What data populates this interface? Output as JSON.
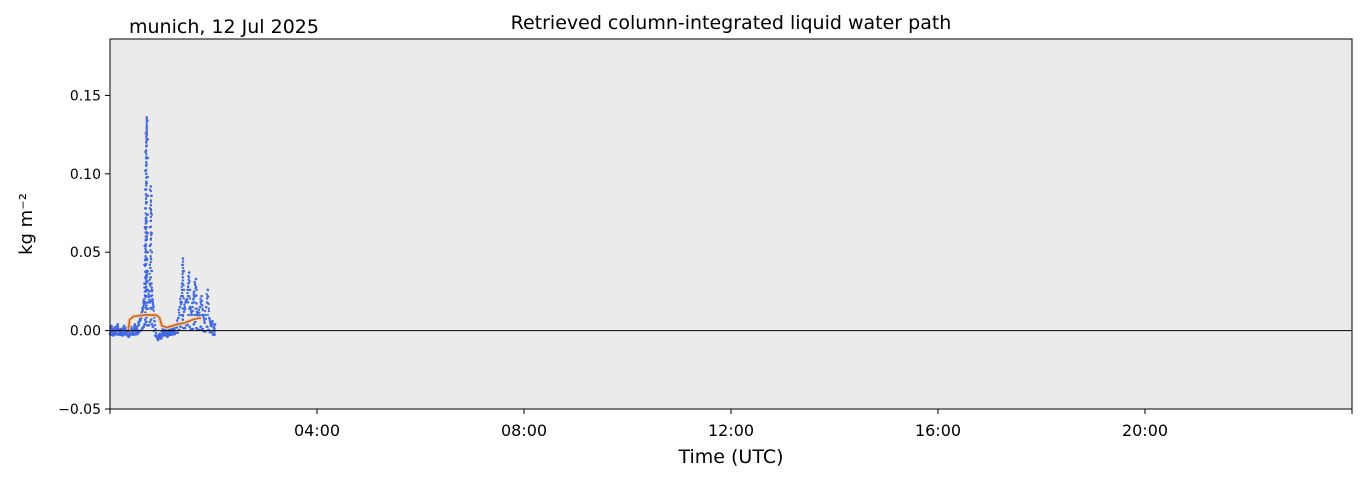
{
  "chart_data": {
    "type": "scatter",
    "title": "Retrieved column-integrated liquid water path",
    "subtitle": "munich, 12 Jul 2025",
    "xlabel": "Time (UTC)",
    "ylabel": "kg m⁻²",
    "xlim_hours": [
      0,
      24
    ],
    "ylim": [
      -0.05,
      0.186
    ],
    "xticks": [
      {
        "h": 0,
        "label": ""
      },
      {
        "h": 4,
        "label": "04:00"
      },
      {
        "h": 8,
        "label": "08:00"
      },
      {
        "h": 12,
        "label": "12:00"
      },
      {
        "h": 16,
        "label": "16:00"
      },
      {
        "h": 20,
        "label": "20:00"
      },
      {
        "h": 24,
        "label": ""
      }
    ],
    "yticks": [
      {
        "v": -0.05,
        "label": "−0.05"
      },
      {
        "v": 0,
        "label": "0.00"
      },
      {
        "v": 0.05,
        "label": "0.05"
      },
      {
        "v": 0.1,
        "label": "0.10"
      },
      {
        "v": 0.15,
        "label": "0.15"
      }
    ],
    "grid": false,
    "background": "#ebebeb",
    "zero_line": true,
    "colors": {
      "points": "#4169e1",
      "smoothed": "#c8642a",
      "smoothed_edge": "#f5cfa8"
    },
    "series": [
      {
        "kind": "scatter",
        "points": [
          [
            0.0,
            -0.002
          ],
          [
            0.03,
            0.003
          ],
          [
            0.06,
            -0.003
          ],
          [
            0.09,
            0.002
          ],
          [
            0.12,
            -0.001
          ],
          [
            0.15,
            0.004
          ],
          [
            0.18,
            -0.002
          ],
          [
            0.21,
            0.001
          ],
          [
            0.24,
            -0.003
          ],
          [
            0.27,
            0.003
          ],
          [
            0.3,
            -0.001
          ],
          [
            0.33,
            0.002
          ],
          [
            0.36,
            -0.004
          ],
          [
            0.39,
            0.003
          ],
          [
            0.42,
            0.001
          ],
          [
            0.45,
            -0.002
          ],
          [
            0.48,
            0.004
          ],
          [
            0.51,
            -0.001
          ],
          [
            0.54,
            0.003
          ],
          [
            0.57,
            0.006
          ],
          [
            0.6,
            0.008
          ],
          [
            0.62,
            0.012
          ],
          [
            0.64,
            0.015
          ],
          [
            0.66,
            0.02
          ],
          [
            0.68,
            0.03
          ],
          [
            0.68,
            0.045
          ],
          [
            0.69,
            0.055
          ],
          [
            0.69,
            0.065
          ],
          [
            0.69,
            0.078
          ],
          [
            0.7,
            0.09
          ],
          [
            0.7,
            0.1
          ],
          [
            0.7,
            0.11
          ],
          [
            0.7,
            0.12
          ],
          [
            0.71,
            0.125
          ],
          [
            0.71,
            0.13
          ],
          [
            0.71,
            0.136
          ],
          [
            0.7,
            0.035
          ],
          [
            0.69,
            0.025
          ],
          [
            0.71,
            0.06
          ],
          [
            0.7,
            0.072
          ],
          [
            0.74,
            0.018
          ],
          [
            0.76,
            0.025
          ],
          [
            0.78,
            0.04
          ],
          [
            0.79,
            0.055
          ],
          [
            0.79,
            0.07
          ],
          [
            0.79,
            0.08
          ],
          [
            0.79,
            0.092
          ],
          [
            0.8,
            0.03
          ],
          [
            0.82,
            0.02
          ],
          [
            0.84,
            0.015
          ],
          [
            0.86,
            0.006
          ],
          [
            0.9,
            -0.004
          ],
          [
            0.93,
            -0.006
          ],
          [
            0.96,
            -0.002
          ],
          [
            0.99,
            -0.005
          ],
          [
            1.02,
            0.001
          ],
          [
            1.05,
            -0.003
          ],
          [
            1.08,
            0.002
          ],
          [
            1.11,
            -0.004
          ],
          [
            1.14,
            0.001
          ],
          [
            1.17,
            -0.002
          ],
          [
            1.2,
            0.003
          ],
          [
            1.23,
            -0.001
          ],
          [
            1.26,
            0.004
          ],
          [
            1.29,
            0.002
          ],
          [
            1.32,
            0.008
          ],
          [
            1.35,
            0.015
          ],
          [
            1.38,
            0.022
          ],
          [
            1.4,
            0.03
          ],
          [
            1.41,
            0.038
          ],
          [
            1.41,
            0.046
          ],
          [
            1.43,
            0.012
          ],
          [
            1.46,
            0.018
          ],
          [
            1.49,
            0.02
          ],
          [
            1.51,
            0.028
          ],
          [
            1.53,
            0.037
          ],
          [
            1.55,
            0.015
          ],
          [
            1.58,
            0.01
          ],
          [
            1.61,
            0.02
          ],
          [
            1.63,
            0.025
          ],
          [
            1.66,
            0.033
          ],
          [
            1.68,
            0.012
          ],
          [
            1.71,
            0.008
          ],
          [
            1.74,
            0.015
          ],
          [
            1.77,
            0.022
          ],
          [
            1.8,
            0.01
          ],
          [
            1.83,
            0.005
          ],
          [
            1.86,
            0.015
          ],
          [
            1.89,
            0.026
          ],
          [
            1.92,
            0.008
          ],
          [
            1.95,
            0.003
          ],
          [
            1.98,
            0.006
          ],
          [
            2.01,
            -0.002
          ],
          [
            2.03,
            0.004
          ]
        ]
      },
      {
        "kind": "line",
        "points": [
          [
            0.35,
            0.0
          ],
          [
            0.38,
            0.007
          ],
          [
            0.45,
            0.009
          ],
          [
            0.55,
            0.0095
          ],
          [
            0.7,
            0.01
          ],
          [
            0.9,
            0.0098
          ],
          [
            0.96,
            0.008
          ],
          [
            1.0,
            0.003
          ],
          [
            1.1,
            0.002
          ],
          [
            1.2,
            0.003
          ],
          [
            1.3,
            0.004
          ],
          [
            1.45,
            0.005
          ],
          [
            1.6,
            0.007
          ],
          [
            1.72,
            0.008
          ],
          [
            1.76,
            0.008
          ]
        ]
      }
    ]
  }
}
